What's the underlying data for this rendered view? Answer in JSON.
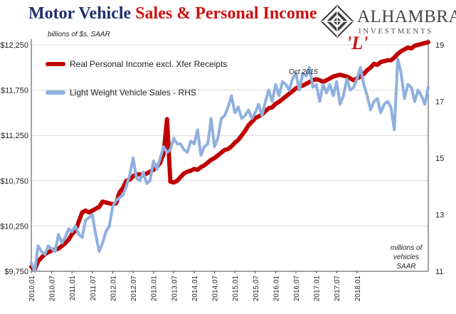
{
  "title": {
    "part1": "Motor Vehicle ",
    "part2": "Sales & Personal Income"
  },
  "logo": {
    "name": "ALHAMBRA",
    "sub": "INVESTMENTS"
  },
  "units_left": "billions of $s, SAAR",
  "units_right": [
    "millions of",
    "vehicles",
    "SAAR"
  ],
  "annotations": {
    "oct2015": "Oct 2015",
    "L": "'L'"
  },
  "colors": {
    "income": "#c00000",
    "sales": "#8fb0e0",
    "logo": "#3a3a3a"
  },
  "chart_data": {
    "type": "line",
    "x_tick_labels": [
      "2010.01",
      "2010.07",
      "2011.01",
      "2011.07",
      "2012.01",
      "2012.07",
      "2013.01",
      "2013.07",
      "2014.01",
      "2014.07",
      "2015.01",
      "2015.07",
      "2016.01",
      "2016.07",
      "2017.01",
      "2017.07",
      "2018.01"
    ],
    "left_axis": {
      "ticks": [
        "$9,750",
        "$10,250",
        "$10,750",
        "$11,250",
        "$11,750",
        "$12,250"
      ],
      "min": 9750,
      "max": 12250
    },
    "right_axis": {
      "ticks": [
        "11",
        "13",
        "15",
        "17",
        "19"
      ],
      "min": 11,
      "max": 19
    },
    "series": [
      {
        "name": "Real Personal Income excl. Xfer Receipts",
        "axis": "left",
        "values": [
          9800,
          9770,
          9860,
          9900,
          9940,
          9960,
          9980,
          9990,
          10000,
          10030,
          10060,
          10100,
          10160,
          10200,
          10300,
          10400,
          10420,
          10400,
          10420,
          10440,
          10460,
          10520,
          10510,
          10500,
          10490,
          10500,
          10620,
          10670,
          10750,
          10760,
          10800,
          10820,
          10820,
          10810,
          10830,
          10850,
          10870,
          10900,
          10950,
          11050,
          11430,
          10740,
          10730,
          10750,
          10790,
          10830,
          10850,
          10860,
          10880,
          10870,
          10900,
          10920,
          10950,
          10980,
          11000,
          11030,
          11060,
          11090,
          11100,
          11130,
          11170,
          11200,
          11250,
          11300,
          11360,
          11400,
          11440,
          11460,
          11480,
          11520,
          11550,
          11560,
          11600,
          11620,
          11650,
          11680,
          11710,
          11740,
          11770,
          11790,
          11800,
          11820,
          11840,
          11860,
          11870,
          11860,
          11840,
          11860,
          11880,
          11900,
          11910,
          11920,
          11910,
          11900,
          11880,
          11860,
          11880,
          11900,
          11930,
          11970,
          12000,
          12040,
          12030,
          12060,
          12070,
          12080,
          12080,
          12110,
          12150,
          12180,
          12200,
          12220,
          12210,
          12240,
          12250,
          12260,
          12270,
          12280
        ]
      },
      {
        "name": "Light Weight Vehicle Sales - RHS",
        "axis": "right",
        "values": [
          11.3,
          11.0,
          11.9,
          11.7,
          11.6,
          11.9,
          11.8,
          11.7,
          12.3,
          12.0,
          12.2,
          12.5,
          12.4,
          12.6,
          12.3,
          12.2,
          12.8,
          12.9,
          13.0,
          12.3,
          11.7,
          12.0,
          12.4,
          12.6,
          13.3,
          13.5,
          13.6,
          13.7,
          14.0,
          14.4,
          15.0,
          14.3,
          14.2,
          14.5,
          14.1,
          14.2,
          14.9,
          14.6,
          15.0,
          15.4,
          15.2,
          15.3,
          15.7,
          15.5,
          15.5,
          15.3,
          15.2,
          15.6,
          15.5,
          16.0,
          15.1,
          15.4,
          15.5,
          16.4,
          15.4,
          15.7,
          16.4,
          16.5,
          16.8,
          17.2,
          16.6,
          16.8,
          16.4,
          16.5,
          16.7,
          16.4,
          16.6,
          16.9,
          16.5,
          17.0,
          17.4,
          17.0,
          17.6,
          17.2,
          17.7,
          17.6,
          17.4,
          17.8,
          18.0,
          17.4,
          18.0,
          17.9,
          18.2,
          17.5,
          17.6,
          17.0,
          17.6,
          17.3,
          17.6,
          17.2,
          17.7,
          16.9,
          17.2,
          17.8,
          17.4,
          17.5,
          17.8,
          18.2,
          17.6,
          17.2,
          16.7,
          17.0,
          17.1,
          16.6,
          16.9,
          17.0,
          16.8,
          16.0,
          18.5,
          18.0,
          17.1,
          17.6,
          17.5,
          17.0,
          17.4,
          17.2,
          16.9,
          17.5
        ]
      }
    ]
  }
}
